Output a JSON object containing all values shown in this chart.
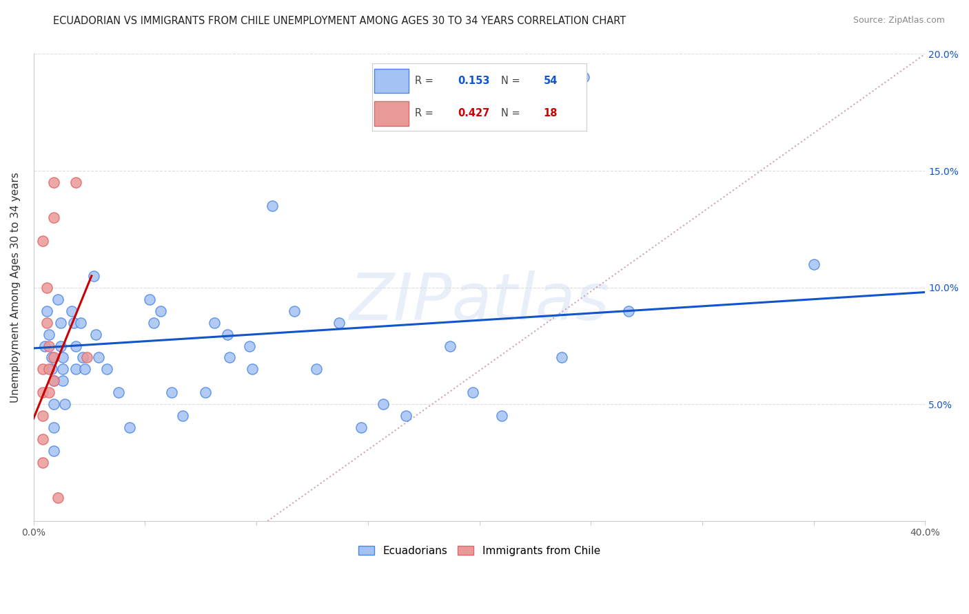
{
  "title": "ECUADORIAN VS IMMIGRANTS FROM CHILE UNEMPLOYMENT AMONG AGES 30 TO 34 YEARS CORRELATION CHART",
  "source": "Source: ZipAtlas.com",
  "ylabel": "Unemployment Among Ages 30 to 34 years",
  "watermark": "ZIPatlas",
  "xlim": [
    0.0,
    0.4
  ],
  "ylim": [
    0.0,
    0.2
  ],
  "xticks": [
    0.0,
    0.05,
    0.1,
    0.15,
    0.2,
    0.25,
    0.3,
    0.35,
    0.4
  ],
  "xtick_labels": [
    "0.0%",
    "",
    "",
    "",
    "",
    "",
    "",
    "",
    "40.0%"
  ],
  "yticks": [
    0.0,
    0.05,
    0.1,
    0.15,
    0.2
  ],
  "ytick_labels_left": [
    "",
    "",
    "",
    "",
    ""
  ],
  "ytick_labels_right": [
    "",
    "5.0%",
    "10.0%",
    "15.0%",
    "20.0%"
  ],
  "blue_r_val": "0.153",
  "blue_n_val": "54",
  "pink_r_val": "0.427",
  "pink_n_val": "18",
  "blue_fill": "#a4c2f4",
  "blue_edge": "#4a86e8",
  "pink_fill": "#ea9999",
  "pink_edge": "#e06666",
  "blue_line": "#1155cc",
  "pink_line": "#cc0000",
  "ref_line_color": "#cc99aa",
  "blue_scatter": [
    [
      0.005,
      0.075
    ],
    [
      0.006,
      0.09
    ],
    [
      0.007,
      0.08
    ],
    [
      0.008,
      0.07
    ],
    [
      0.008,
      0.065
    ],
    [
      0.009,
      0.06
    ],
    [
      0.009,
      0.05
    ],
    [
      0.009,
      0.04
    ],
    [
      0.009,
      0.03
    ],
    [
      0.011,
      0.095
    ],
    [
      0.012,
      0.085
    ],
    [
      0.012,
      0.075
    ],
    [
      0.013,
      0.07
    ],
    [
      0.013,
      0.065
    ],
    [
      0.013,
      0.06
    ],
    [
      0.014,
      0.05
    ],
    [
      0.017,
      0.09
    ],
    [
      0.018,
      0.085
    ],
    [
      0.019,
      0.075
    ],
    [
      0.019,
      0.065
    ],
    [
      0.021,
      0.085
    ],
    [
      0.022,
      0.07
    ],
    [
      0.023,
      0.065
    ],
    [
      0.027,
      0.105
    ],
    [
      0.028,
      0.08
    ],
    [
      0.029,
      0.07
    ],
    [
      0.033,
      0.065
    ],
    [
      0.038,
      0.055
    ],
    [
      0.043,
      0.04
    ],
    [
      0.052,
      0.095
    ],
    [
      0.054,
      0.085
    ],
    [
      0.057,
      0.09
    ],
    [
      0.062,
      0.055
    ],
    [
      0.067,
      0.045
    ],
    [
      0.077,
      0.055
    ],
    [
      0.081,
      0.085
    ],
    [
      0.087,
      0.08
    ],
    [
      0.088,
      0.07
    ],
    [
      0.097,
      0.075
    ],
    [
      0.098,
      0.065
    ],
    [
      0.107,
      0.135
    ],
    [
      0.117,
      0.09
    ],
    [
      0.127,
      0.065
    ],
    [
      0.137,
      0.085
    ],
    [
      0.147,
      0.04
    ],
    [
      0.157,
      0.05
    ],
    [
      0.167,
      0.045
    ],
    [
      0.187,
      0.075
    ],
    [
      0.197,
      0.055
    ],
    [
      0.21,
      0.045
    ],
    [
      0.237,
      0.07
    ],
    [
      0.247,
      0.19
    ],
    [
      0.267,
      0.09
    ],
    [
      0.35,
      0.11
    ]
  ],
  "pink_scatter": [
    [
      0.004,
      0.12
    ],
    [
      0.004,
      0.065
    ],
    [
      0.004,
      0.055
    ],
    [
      0.004,
      0.045
    ],
    [
      0.004,
      0.035
    ],
    [
      0.004,
      0.025
    ],
    [
      0.006,
      0.1
    ],
    [
      0.006,
      0.085
    ],
    [
      0.007,
      0.075
    ],
    [
      0.007,
      0.065
    ],
    [
      0.007,
      0.055
    ],
    [
      0.009,
      0.145
    ],
    [
      0.009,
      0.13
    ],
    [
      0.009,
      0.07
    ],
    [
      0.009,
      0.06
    ],
    [
      0.011,
      0.01
    ],
    [
      0.019,
      0.145
    ],
    [
      0.024,
      0.07
    ]
  ],
  "blue_trend_x": [
    0.0,
    0.4
  ],
  "blue_trend_y": [
    0.074,
    0.098
  ],
  "pink_trend_x": [
    0.0,
    0.026
  ],
  "pink_trend_y": [
    0.044,
    0.105
  ],
  "ref_line_x": [
    0.105,
    0.4
  ],
  "ref_line_y": [
    0.0,
    0.2
  ]
}
